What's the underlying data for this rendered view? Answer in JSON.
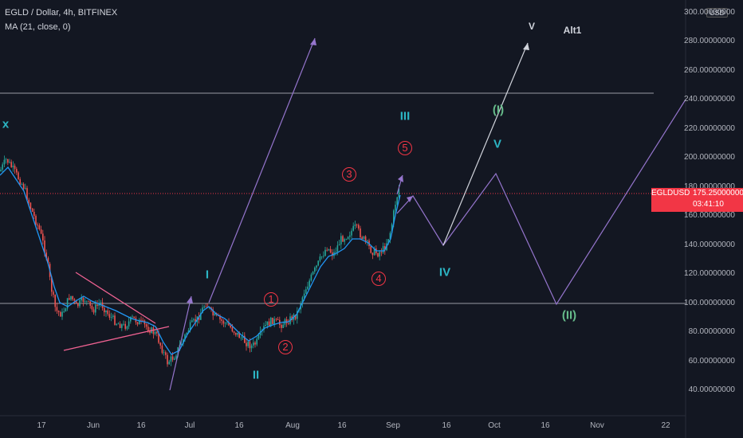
{
  "header": {
    "symbol_line": "EGLD / Dollar, 4h, BITFINEX",
    "indicator_line": "MA (21, close, 0)"
  },
  "currency_badge": "USD",
  "price_axis": {
    "labels": [
      "300.00000000",
      "280.00000000",
      "260.00000000",
      "240.00000000",
      "220.00000000",
      "200.00000000",
      "180.00000000",
      "160.00000000",
      "140.00000000",
      "120.00000000",
      "100.00000000",
      "80.00000000",
      "60.00000000",
      "40.00000000"
    ],
    "values": [
      300,
      280,
      260,
      240,
      220,
      200,
      180,
      160,
      140,
      120,
      100,
      80,
      60,
      40
    ]
  },
  "time_axis": {
    "labels": [
      "17",
      "Jun",
      "16",
      "Jul",
      "16",
      "Aug",
      "16",
      "Sep",
      "16",
      "Oct",
      "16",
      "Nov",
      "22"
    ]
  },
  "price_tag": {
    "symbol": "EGLDUSD",
    "price": "175.25000000",
    "countdown": "03:41:10",
    "value": 175.25
  },
  "horizontal_levels": [
    244,
    100
  ],
  "wave_labels": {
    "x": "x",
    "i": "I",
    "ii": "II",
    "iii": "III",
    "iv": "IV",
    "v": "V",
    "one": "1",
    "two": "2",
    "three": "3",
    "four": "4",
    "five": "5",
    "big_one": "(I)",
    "big_two": "(II)",
    "alt_v": "V",
    "alt1": "Alt1"
  },
  "colors": {
    "background": "#131722",
    "projection": "#9575cd",
    "alt_projection": "#d1d4dc",
    "ma_line": "#2196f3",
    "triangle": "#f06292",
    "price_line": "#f23645",
    "wave_teal": "#26a69a",
    "wave_red": "#f23645"
  }
}
